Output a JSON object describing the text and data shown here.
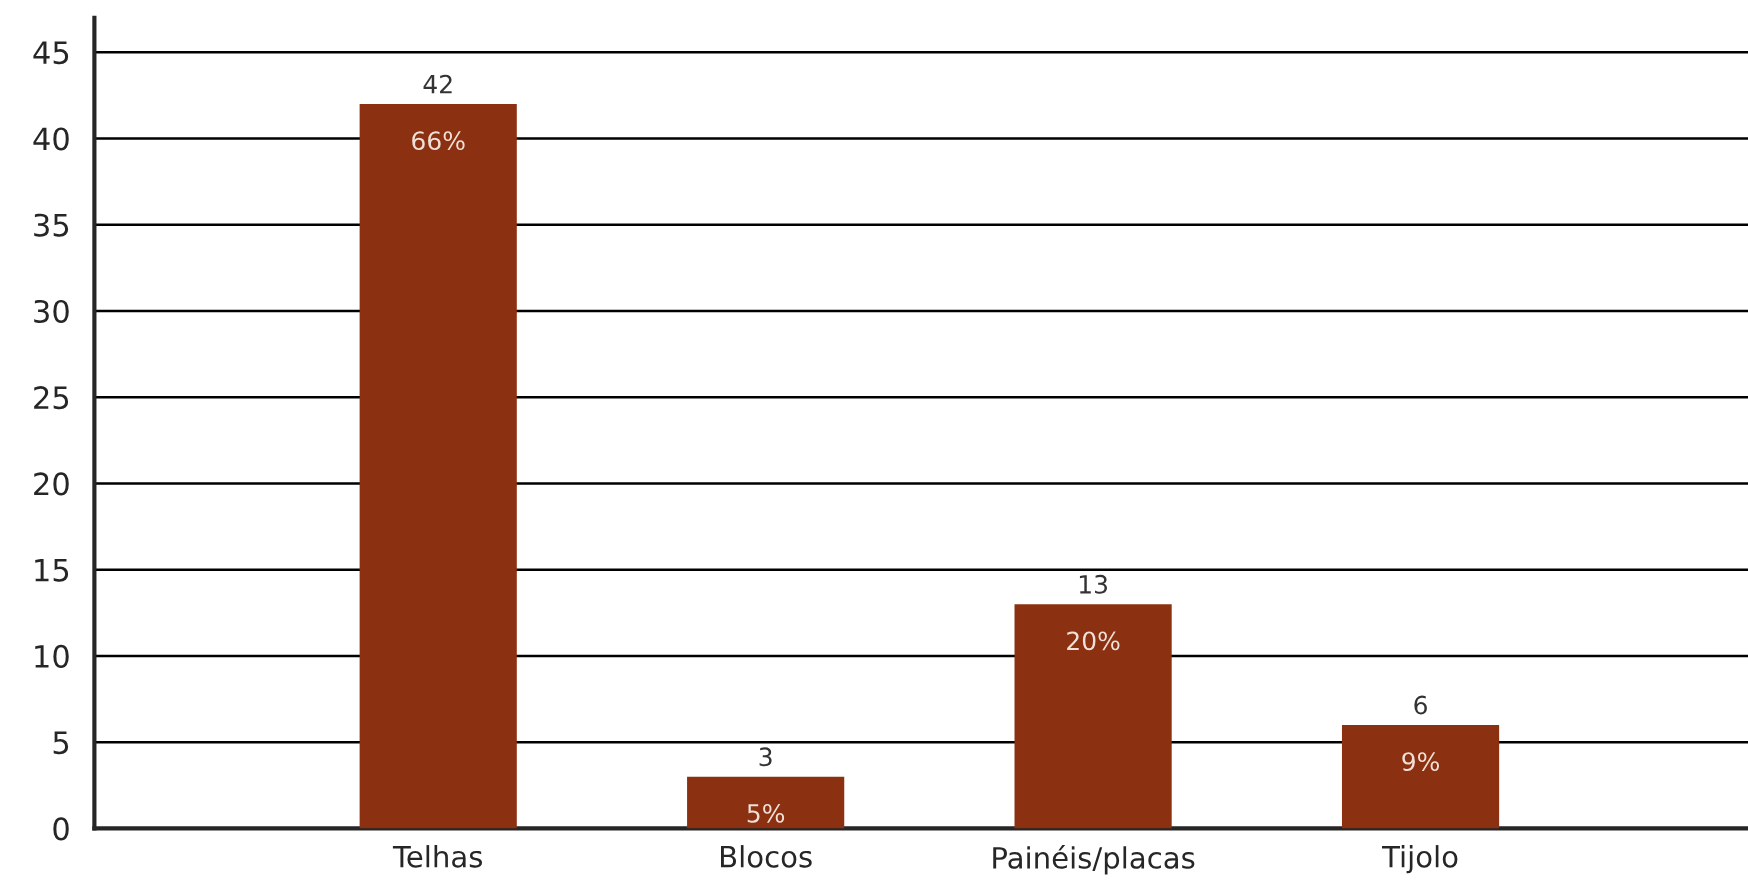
{
  "chart_data": {
    "type": "bar",
    "categories": [
      "Telhas",
      "Blocos",
      "Painéis/placas",
      "Tijolo"
    ],
    "values": [
      42,
      3,
      13,
      6
    ],
    "color": "#8b3010",
    "ylim": [
      0,
      47
    ],
    "yticks": [
      0,
      5,
      10,
      15,
      20,
      25,
      30,
      35,
      40,
      45
    ],
    "grid": "y",
    "data_labels": true,
    "annotations": [
      {
        "text": "66%",
        "x": "Telhas",
        "y": 42
      },
      {
        "text": "5%",
        "x": "Blocos",
        "y": 3
      },
      {
        "text": "20%",
        "x": "Painéis/placas",
        "y": 13
      },
      {
        "text": "9%",
        "x": "Tijolo",
        "y": 6
      }
    ]
  }
}
